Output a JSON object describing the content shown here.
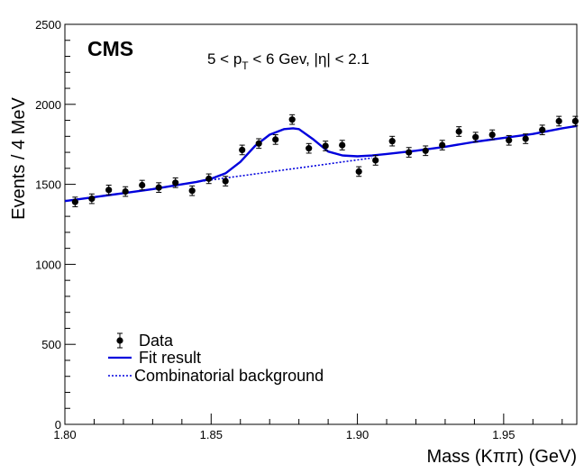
{
  "chart_data": {
    "type": "scatter",
    "experiment_label": "CMS",
    "kinematic_label": {
      "p1": "5 < p",
      "sub": "T",
      "p2": " < 6 Gev, |η| < 2.1"
    },
    "xlabel": "Mass (Kππ) (GeV)",
    "ylabel": "Events / 4 MeV",
    "xlim": [
      1.8,
      1.975
    ],
    "ylim": [
      0,
      2500
    ],
    "xticks": [
      "1.80",
      "1.85",
      "1.90",
      "1.95"
    ],
    "yticks": [
      "0",
      "500",
      "1000",
      "1500",
      "2000",
      "2500"
    ],
    "series": [
      {
        "name": "Data",
        "style": "points-with-errorbars",
        "color": "#000000",
        "x": [
          1.8035,
          1.8092,
          1.815,
          1.8207,
          1.8264,
          1.8321,
          1.8378,
          1.8435,
          1.8492,
          1.8549,
          1.8606,
          1.8663,
          1.872,
          1.8777,
          1.8834,
          1.8891,
          1.8948,
          1.9005,
          1.9062,
          1.9119,
          1.9176,
          1.9233,
          1.929,
          1.9347,
          1.9404,
          1.9461,
          1.9518,
          1.9575,
          1.9632,
          1.9689,
          1.9745
        ],
        "y": [
          1390,
          1410,
          1465,
          1455,
          1495,
          1480,
          1510,
          1460,
          1535,
          1520,
          1715,
          1755,
          1780,
          1905,
          1725,
          1740,
          1745,
          1580,
          1650,
          1770,
          1700,
          1710,
          1745,
          1830,
          1795,
          1810,
          1775,
          1785,
          1840,
          1895,
          1895
        ],
        "yerr": [
          30,
          30,
          30,
          30,
          30,
          30,
          30,
          30,
          30,
          30,
          30,
          30,
          30,
          30,
          30,
          30,
          30,
          30,
          30,
          30,
          30,
          30,
          30,
          30,
          30,
          30,
          30,
          30,
          30,
          30,
          30
        ]
      },
      {
        "name": "Fit result",
        "style": "solid-line",
        "color": "#0000dd",
        "x": [
          1.8,
          1.81,
          1.82,
          1.83,
          1.84,
          1.845,
          1.85,
          1.855,
          1.86,
          1.865,
          1.87,
          1.875,
          1.878,
          1.88,
          1.885,
          1.89,
          1.895,
          1.9,
          1.905,
          1.91,
          1.92,
          1.93,
          1.94,
          1.95,
          1.96,
          1.97,
          1.975
        ],
        "y": [
          1395,
          1420,
          1445,
          1470,
          1500,
          1515,
          1535,
          1570,
          1640,
          1740,
          1810,
          1845,
          1850,
          1845,
          1780,
          1705,
          1680,
          1675,
          1680,
          1690,
          1710,
          1735,
          1765,
          1790,
          1815,
          1850,
          1865
        ]
      },
      {
        "name": "Combinatorial background",
        "style": "dotted-line",
        "color": "#0000dd",
        "x": [
          1.845,
          1.855,
          1.865,
          1.875,
          1.885,
          1.895,
          1.905
        ],
        "y": [
          1515,
          1540,
          1565,
          1590,
          1615,
          1640,
          1665
        ]
      }
    ],
    "legend": [
      "Data",
      "Fit result",
      "Combinatorial background"
    ],
    "legend_position": "bottom-left",
    "grid": false
  }
}
